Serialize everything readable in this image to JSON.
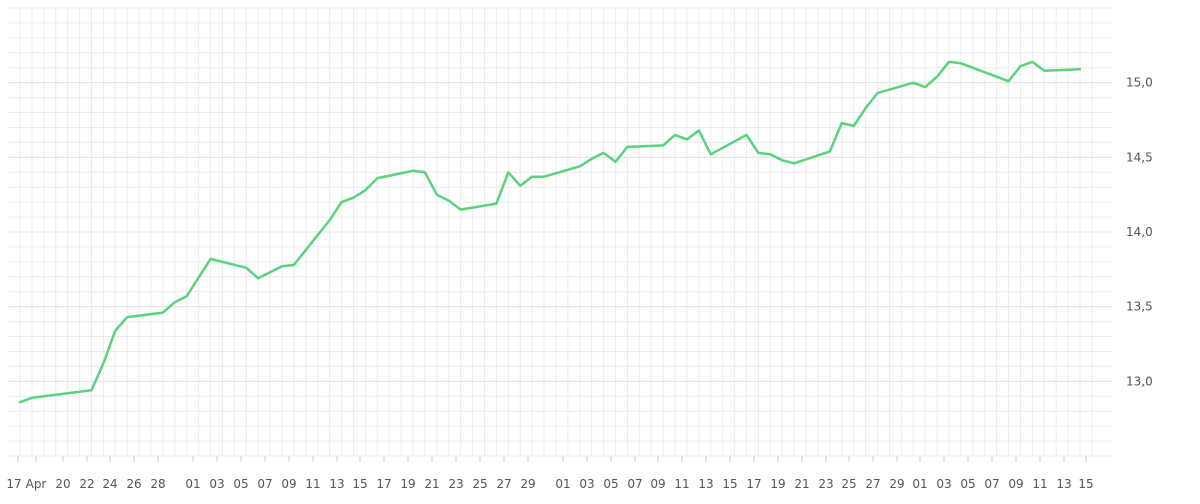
{
  "chart_data": {
    "type": "line",
    "title": "",
    "xlabel": "",
    "ylabel": "",
    "y_axis_side": "right",
    "ylim": [
      12.5,
      15.5
    ],
    "grid": true,
    "line_color": "#5ad37f",
    "x_tick_labels": [
      "17",
      "Apr",
      "20",
      "22",
      "24",
      "26",
      "28",
      "01",
      "03",
      "05",
      "07",
      "09",
      "11",
      "13",
      "15",
      "17",
      "19",
      "21",
      "23",
      "25",
      "27",
      "29",
      "01",
      "03",
      "05",
      "07",
      "09",
      "11",
      "13",
      "15",
      "17",
      "19",
      "21",
      "23",
      "25",
      "27",
      "29",
      "01",
      "03",
      "05",
      "07",
      "09",
      "11",
      "13",
      "15"
    ],
    "x_tick_dates": [
      "2024-03-17",
      "2024-04-01",
      "2024-04-20",
      "2024-04-22",
      "2024-04-24",
      "2024-04-26",
      "2024-04-28",
      "2024-05-01",
      "2024-05-03",
      "2024-05-05",
      "2024-05-07",
      "2024-05-09",
      "2024-05-11",
      "2024-05-13",
      "2024-05-15",
      "2024-05-17",
      "2024-05-19",
      "2024-05-21",
      "2024-05-23",
      "2024-05-25",
      "2024-05-27",
      "2024-05-29",
      "2024-06-01",
      "2024-06-03",
      "2024-06-05",
      "2024-06-07",
      "2024-06-09",
      "2024-06-11",
      "2024-06-13",
      "2024-06-15",
      "2024-06-17",
      "2024-06-19",
      "2024-06-21",
      "2024-06-23",
      "2024-06-25",
      "2024-06-27",
      "2024-06-29",
      "2024-07-01",
      "2024-07-03",
      "2024-07-05",
      "2024-07-07",
      "2024-07-09",
      "2024-07-11",
      "2024-07-13",
      "2024-07-15"
    ],
    "y_ticks": [
      13.0,
      13.5,
      14.0,
      14.5,
      15.0
    ],
    "y_tick_labels": [
      "13,0",
      "13,5",
      "14,0",
      "14,5",
      "15,0"
    ],
    "series": [
      {
        "x": [
          "2024-04-17",
          "2024-04-18",
          "2024-04-23",
          "2024-04-24",
          "2024-04-25",
          "2024-04-26",
          "2024-04-29",
          "2024-04-30",
          "2024-05-01",
          "2024-05-03",
          "2024-05-06",
          "2024-05-07",
          "2024-05-09",
          "2024-05-10",
          "2024-05-13",
          "2024-05-14",
          "2024-05-15",
          "2024-05-16",
          "2024-05-17",
          "2024-05-20",
          "2024-05-21",
          "2024-05-22",
          "2024-05-23",
          "2024-05-24",
          "2024-05-27",
          "2024-05-28",
          "2024-05-29",
          "2024-05-30",
          "2024-05-31",
          "2024-06-03",
          "2024-06-04",
          "2024-06-05",
          "2024-06-06",
          "2024-06-07",
          "2024-06-10",
          "2024-06-11",
          "2024-06-12",
          "2024-06-13",
          "2024-06-14",
          "2024-06-17",
          "2024-06-18",
          "2024-06-19",
          "2024-06-20",
          "2024-06-21",
          "2024-06-24",
          "2024-06-25",
          "2024-06-26",
          "2024-06-27",
          "2024-06-28",
          "2024-07-01",
          "2024-07-02",
          "2024-07-03",
          "2024-07-04",
          "2024-07-05",
          "2024-07-08",
          "2024-07-09",
          "2024-07-10",
          "2024-07-11",
          "2024-07-12",
          "2024-07-15"
        ],
        "values": [
          12.86,
          12.89,
          12.94,
          13.12,
          13.34,
          13.43,
          13.46,
          13.53,
          13.57,
          13.82,
          13.76,
          13.69,
          13.77,
          13.78,
          14.08,
          14.2,
          14.23,
          14.28,
          14.36,
          14.41,
          14.4,
          14.25,
          14.21,
          14.15,
          14.19,
          14.4,
          14.31,
          14.37,
          14.37,
          14.44,
          14.49,
          14.53,
          14.47,
          14.57,
          14.58,
          14.65,
          14.62,
          14.68,
          14.52,
          14.65,
          14.53,
          14.52,
          14.48,
          14.46,
          14.54,
          14.73,
          14.71,
          14.83,
          14.93,
          15.0,
          14.97,
          15.04,
          15.14,
          15.13,
          15.04,
          15.01,
          15.11,
          15.14,
          15.08,
          15.09
        ]
      }
    ]
  }
}
